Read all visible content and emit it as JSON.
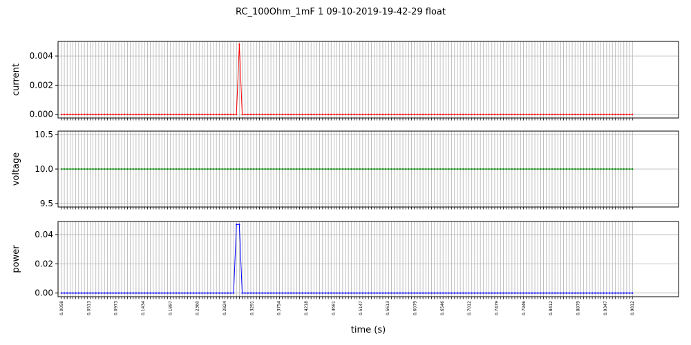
{
  "chart_data": {
    "title": "RC_100Ohm_1mF   1   09-10-2019-19-42-29   float",
    "xlabel": "time (s)",
    "xlim": [
      0.0,
      1.06
    ],
    "x_start": 0.0058,
    "x_end": 0.9812,
    "num_points": 200,
    "grid": true,
    "x_ticklabels": [
      "0.0058",
      "0.0513",
      "0.0973",
      "0.1434",
      "0.1897",
      "0.2360",
      "0.2824",
      "0.3291",
      "0.3754",
      "0.4218",
      "0.4681",
      "0.5147",
      "0.5613",
      "0.6079",
      "0.6546",
      "0.7012",
      "0.7479",
      "0.7946",
      "0.8412",
      "0.8879",
      "0.9347",
      "0.9812"
    ],
    "panels": [
      {
        "type": "line",
        "ylabel": "current",
        "color": "#ff0000",
        "ylim": [
          -0.00025,
          0.005
        ],
        "yticks": [
          "0.000",
          "0.002",
          "0.004"
        ],
        "ytick_values": [
          0.0,
          0.002,
          0.004
        ],
        "baseline": 0.0,
        "peaks": [
          {
            "x": 0.3105,
            "y": 0.0048
          }
        ]
      },
      {
        "type": "line",
        "ylabel": "voltage",
        "color": "#008000",
        "ylim": [
          9.45,
          10.55
        ],
        "yticks": [
          "9.5",
          "10.0",
          "10.5"
        ],
        "ytick_values": [
          9.5,
          10.0,
          10.5
        ],
        "baseline": 10.0,
        "peaks": []
      },
      {
        "type": "line",
        "ylabel": "power",
        "color": "#0000ff",
        "ylim": [
          -0.0025,
          0.049
        ],
        "yticks": [
          "0.00",
          "0.02",
          "0.04"
        ],
        "ytick_values": [
          0.0,
          0.02,
          0.04
        ],
        "baseline": 0.0,
        "peaks": [
          {
            "x": 0.3055,
            "y": 0.047
          },
          {
            "x": 0.3105,
            "y": 0.047
          }
        ]
      }
    ]
  }
}
